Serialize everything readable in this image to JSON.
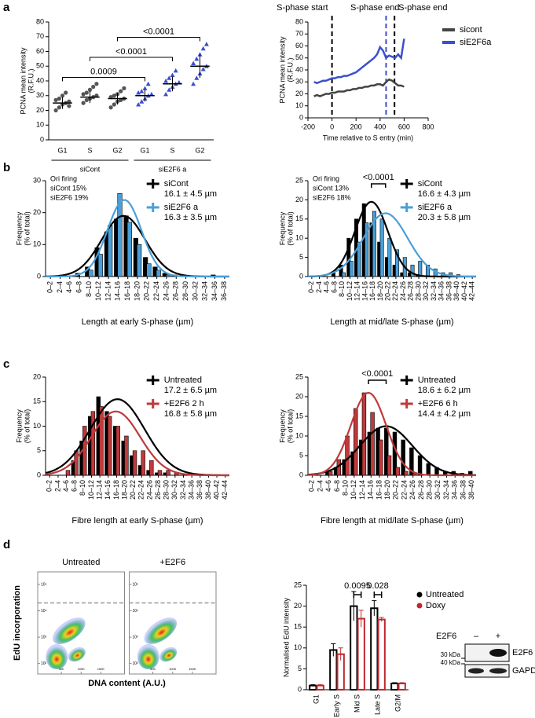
{
  "chart_data": [
    {
      "panel": "a",
      "type": "dotplot",
      "ylabel": [
        "PCNA mean intensity",
        "(R.F.U.)"
      ],
      "ylim": [
        0,
        80
      ],
      "yticks": [
        0,
        10,
        20,
        30,
        40,
        50,
        60,
        70,
        80
      ],
      "series": [
        {
          "name": "siCont",
          "color": "#555555",
          "categories": [
            "G1",
            "S",
            "G2"
          ],
          "points": [
            [
              20,
              22,
              24,
              25,
              26,
              27,
              28,
              30,
              32,
              23
            ],
            [
              25,
              27,
              28,
              29,
              30,
              31,
              32,
              34,
              36,
              38
            ],
            [
              22,
              24,
              26,
              27,
              28,
              29,
              30,
              31,
              33,
              35
            ]
          ],
          "means": [
            25,
            29,
            28
          ],
          "sd": [
            4,
            4,
            4
          ]
        },
        {
          "name": "siE2F6 a",
          "color": "#3a4fcf",
          "categories": [
            "G1",
            "S",
            "G2"
          ],
          "points": [
            [
              24,
              26,
              28,
              30,
              31,
              32,
              33,
              35,
              38
            ],
            [
              31,
              34,
              36,
              38,
              39,
              40,
              42,
              44,
              47
            ],
            [
              38,
              42,
              45,
              48,
              50,
              52,
              55,
              58,
              62,
              65
            ]
          ],
          "means": [
            30,
            38,
            50
          ],
          "sd": [
            4,
            5,
            8
          ]
        }
      ],
      "comparisons": [
        "0.0009",
        "<0.0001",
        "<0.0001"
      ]
    },
    {
      "type": "line",
      "xlabel": "Time relative to S entry (min)",
      "ylabel": [
        "PCNA mean intensity",
        "(R.F.U.)"
      ],
      "xlim": [
        -200,
        800
      ],
      "xticks": [
        -200,
        0,
        200,
        400,
        600,
        800
      ],
      "ylim": [
        0,
        80
      ],
      "yticks": [
        0,
        10,
        20,
        30,
        40,
        50,
        60,
        70,
        80
      ],
      "x": [
        -150,
        -125,
        -100,
        -75,
        -50,
        -25,
        0,
        25,
        50,
        75,
        100,
        125,
        150,
        175,
        200,
        225,
        250,
        275,
        300,
        325,
        350,
        375,
        400,
        425,
        450,
        475,
        500,
        525,
        550,
        575,
        600
      ],
      "series": [
        {
          "name": "sicont",
          "color": "#444444",
          "values": [
            18,
            19,
            18,
            19,
            20,
            20,
            21,
            21,
            22,
            22,
            22,
            23,
            23,
            24,
            24,
            25,
            25,
            26,
            26,
            27,
            27,
            28,
            28,
            27,
            30,
            32,
            31,
            29,
            27,
            27,
            26
          ]
        },
        {
          "name": "siE2F6a",
          "color": "#3a4fcf",
          "values": [
            30,
            29,
            30,
            31,
            31,
            32,
            33,
            33,
            34,
            34,
            35,
            35,
            36,
            37,
            38,
            40,
            42,
            44,
            46,
            48,
            50,
            53,
            59,
            56,
            50,
            52,
            51,
            50,
            53,
            50,
            66
          ]
        }
      ],
      "vlines": [
        {
          "x": 0,
          "label": "S-phase start",
          "color": "#000000"
        },
        {
          "x": 450,
          "label": "S-phase end",
          "color": "#3a4fcf"
        },
        {
          "x": 520,
          "label": "S-phase end",
          "color": "#000000"
        }
      ]
    },
    {
      "panel": "b",
      "type": "histogram",
      "xlabel": "Length at early S-phase (µm)",
      "ylabel": [
        "Frequency",
        "(% of total)"
      ],
      "ylim": [
        0,
        30
      ],
      "yticks": [
        0,
        10,
        20,
        30
      ],
      "annotation": [
        "Ori firing",
        "siCont 15%",
        "siE2F6 19%"
      ],
      "categories": [
        "0–2",
        "2–4",
        "4–6",
        "6–8",
        "8–10",
        "10–12",
        "12–14",
        "14–16",
        "16–18",
        "18–20",
        "20–22",
        "22–24",
        "24–26",
        "26–28",
        "28–30",
        "30–32",
        "32–34",
        "34–36",
        "36–38"
      ],
      "series": [
        {
          "name": "siCont",
          "stat": "16.1 ± 4.5 µm",
          "mean": 16.1,
          "sd": 4.5,
          "fit_peak": 19,
          "color": "#000000",
          "values": [
            0,
            0,
            0,
            1,
            3,
            9,
            14,
            18,
            19,
            12,
            6,
            3,
            1,
            0.5,
            0,
            0,
            0,
            0.5,
            0
          ]
        },
        {
          "name": "siE2F6 a",
          "stat": "16.3 ± 3.5 µm",
          "mean": 16.3,
          "sd": 3.5,
          "fit_peak": 24,
          "color": "#4a9fd8",
          "values": [
            0,
            0,
            0,
            0,
            2,
            7,
            16,
            26,
            17,
            10,
            4,
            2,
            0.5,
            0,
            0,
            0,
            0,
            0,
            0
          ]
        }
      ]
    },
    {
      "type": "histogram",
      "xlabel": "Length at mid/late S-phase (µm)",
      "ylabel": [
        "Frequency",
        "(% of total)"
      ],
      "ylim": [
        0,
        25
      ],
      "yticks": [
        0,
        5,
        10,
        15,
        20,
        25
      ],
      "annotation": [
        "Ori firing",
        "siCont 13%",
        "siE2F6 18%"
      ],
      "comparison": "<0.0001",
      "categories": [
        "0–2",
        "2–4",
        "4–6",
        "6–8",
        "8–10",
        "10–12",
        "12–14",
        "14–16",
        "16–18",
        "18–20",
        "20–22",
        "22–24",
        "24–26",
        "26–28",
        "28–30",
        "30–32",
        "32–34",
        "34–36",
        "36–38",
        "38–40",
        "40–42",
        "42–44"
      ],
      "series": [
        {
          "name": "siCont",
          "stat": "16.6 ± 4.3 µm",
          "mean": 16.6,
          "sd": 4.3,
          "fit_peak": 19.5,
          "color": "#000000",
          "values": [
            0,
            0,
            0,
            1,
            3,
            10,
            15,
            19,
            14,
            9,
            5,
            3,
            1,
            1,
            0.5,
            0,
            0,
            0,
            0,
            0,
            0,
            0
          ]
        },
        {
          "name": "siE2F6 a",
          "stat": "20.3 ± 5.8 µm",
          "mean": 20.3,
          "sd": 5.8,
          "fit_peak": 16.5,
          "color": "#4a9fd8",
          "values": [
            0,
            0,
            0,
            0,
            1,
            4,
            9,
            14,
            17,
            15,
            10,
            7,
            5,
            3,
            4,
            3,
            2,
            1,
            1,
            0.5,
            0,
            0
          ]
        }
      ]
    },
    {
      "panel": "c",
      "type": "histogram",
      "xlabel": "Fibre length at early S-phase (µm)",
      "ylabel": [
        "Frequency",
        "(% of total)"
      ],
      "ylim": [
        0,
        20
      ],
      "yticks": [
        0,
        5,
        10,
        15,
        20
      ],
      "categories": [
        "0–2",
        "2–4",
        "4–6",
        "6–8",
        "8–10",
        "10–12",
        "12–14",
        "14–16",
        "16–18",
        "18–20",
        "20–22",
        "22–24",
        "24–26",
        "26–28",
        "28–30",
        "30–32",
        "32–34",
        "34–36",
        "36–38",
        "38–40",
        "40–42",
        "42–44"
      ],
      "series": [
        {
          "name": "Untreated",
          "stat": "17.2 ± 6.5 µm",
          "mean": 17.2,
          "sd": 6.5,
          "fit_peak": 15.5,
          "color": "#000000",
          "values": [
            0,
            0,
            0,
            3,
            7,
            12,
            16,
            13,
            10,
            7,
            4,
            2,
            1,
            0.5,
            0.5,
            0,
            0,
            0,
            0,
            0,
            0,
            0
          ]
        },
        {
          "name": "+E2F6 2 h",
          "stat": "16.8 ± 5.8 µm",
          "mean": 16.8,
          "sd": 5.8,
          "fit_peak": 13,
          "color": "#c0393b",
          "values": [
            0,
            0,
            1,
            5,
            10,
            13,
            14,
            12,
            10,
            8,
            5,
            5,
            3,
            1,
            1,
            0.5,
            0,
            0,
            0,
            0,
            0,
            0
          ]
        }
      ]
    },
    {
      "type": "histogram",
      "xlabel": "Fibre length at mid/late S-phase (µm)",
      "ylabel": [
        "Frequency",
        "(% of total)"
      ],
      "ylim": [
        0,
        25
      ],
      "yticks": [
        0,
        5,
        10,
        15,
        20,
        25
      ],
      "comparison": "<0.0001",
      "categories": [
        "0–2",
        "2–4",
        "4–6",
        "6–8",
        "8–10",
        "10–12",
        "12–14",
        "14–16",
        "16–18",
        "18–20",
        "20–22",
        "22–24",
        "24–26",
        "26–28",
        "28–30",
        "30–32",
        "32–34",
        "34–36",
        "36–38",
        "38–40"
      ],
      "series": [
        {
          "name": "Untreated",
          "stat": "18.6 ± 6.2 µm",
          "mean": 18.6,
          "sd": 6.2,
          "fit_peak": 12.5,
          "color": "#000000",
          "values": [
            0,
            0,
            1,
            2,
            4,
            6,
            9,
            11,
            12,
            12,
            11,
            9,
            7,
            5,
            3,
            2,
            1,
            1,
            0.5,
            1
          ]
        },
        {
          "name": "+E2F6 6 h",
          "stat": "14.4 ± 4.2 µm",
          "mean": 14.4,
          "sd": 4.2,
          "fit_peak": 21,
          "color": "#c0393b",
          "values": [
            0,
            0,
            1,
            4,
            10,
            17,
            21,
            16,
            9,
            5,
            2,
            1,
            0.5,
            0,
            0,
            0,
            0,
            0,
            0,
            0
          ]
        }
      ]
    },
    {
      "panel": "d",
      "type": "flow",
      "panels": [
        "Untreated",
        "+E2F6"
      ],
      "xlabel": "DNA content (A.U.)",
      "ylabel": "EdU incorporation",
      "xlim": [
        -10000,
        210000
      ],
      "xticks": [
        {
          "value": 50000,
          "label": "50K"
        },
        {
          "value": 100000,
          "label": "100K"
        },
        {
          "value": 150000,
          "label": "150K"
        }
      ],
      "ylog": true,
      "ylim": [
        40,
        300000
      ],
      "yticks": [
        {
          "value": 100,
          "label": "10²"
        },
        {
          "value": 1000,
          "label": "10³"
        },
        {
          "value": 10000,
          "label": "10⁴"
        },
        {
          "value": 100000,
          "label": "10⁵"
        }
      ],
      "threshold": 20000
    },
    {
      "type": "groupedbar",
      "ylabel": "Normalised EdU intensity",
      "ylim": [
        0,
        25
      ],
      "yticks": [
        0,
        5,
        10,
        15,
        20,
        25
      ],
      "categories": [
        "G1",
        "Early S",
        "Mid S",
        "Late S",
        "G2/M"
      ],
      "series": [
        {
          "name": "Untreated",
          "color": "#000000",
          "values": [
            1,
            9.5,
            20,
            19.5,
            1.5
          ],
          "errors": [
            0.2,
            1.5,
            3.5,
            1.8,
            0.2
          ]
        },
        {
          "name": "Doxy",
          "color": "#c0272d",
          "values": [
            1,
            8.5,
            17,
            16.8,
            1.5
          ],
          "errors": [
            0.2,
            1.5,
            2,
            0.5,
            0.2
          ]
        }
      ],
      "comparisons": [
        null,
        null,
        "0.0095",
        "0.028",
        null
      ]
    },
    {
      "type": "blot",
      "protein": "E2F6",
      "lanes": [
        "–",
        "+"
      ],
      "markers": [
        "30 kDa",
        "40 kDa"
      ],
      "bands": [
        "E2F6",
        "GAPDH"
      ]
    }
  ]
}
